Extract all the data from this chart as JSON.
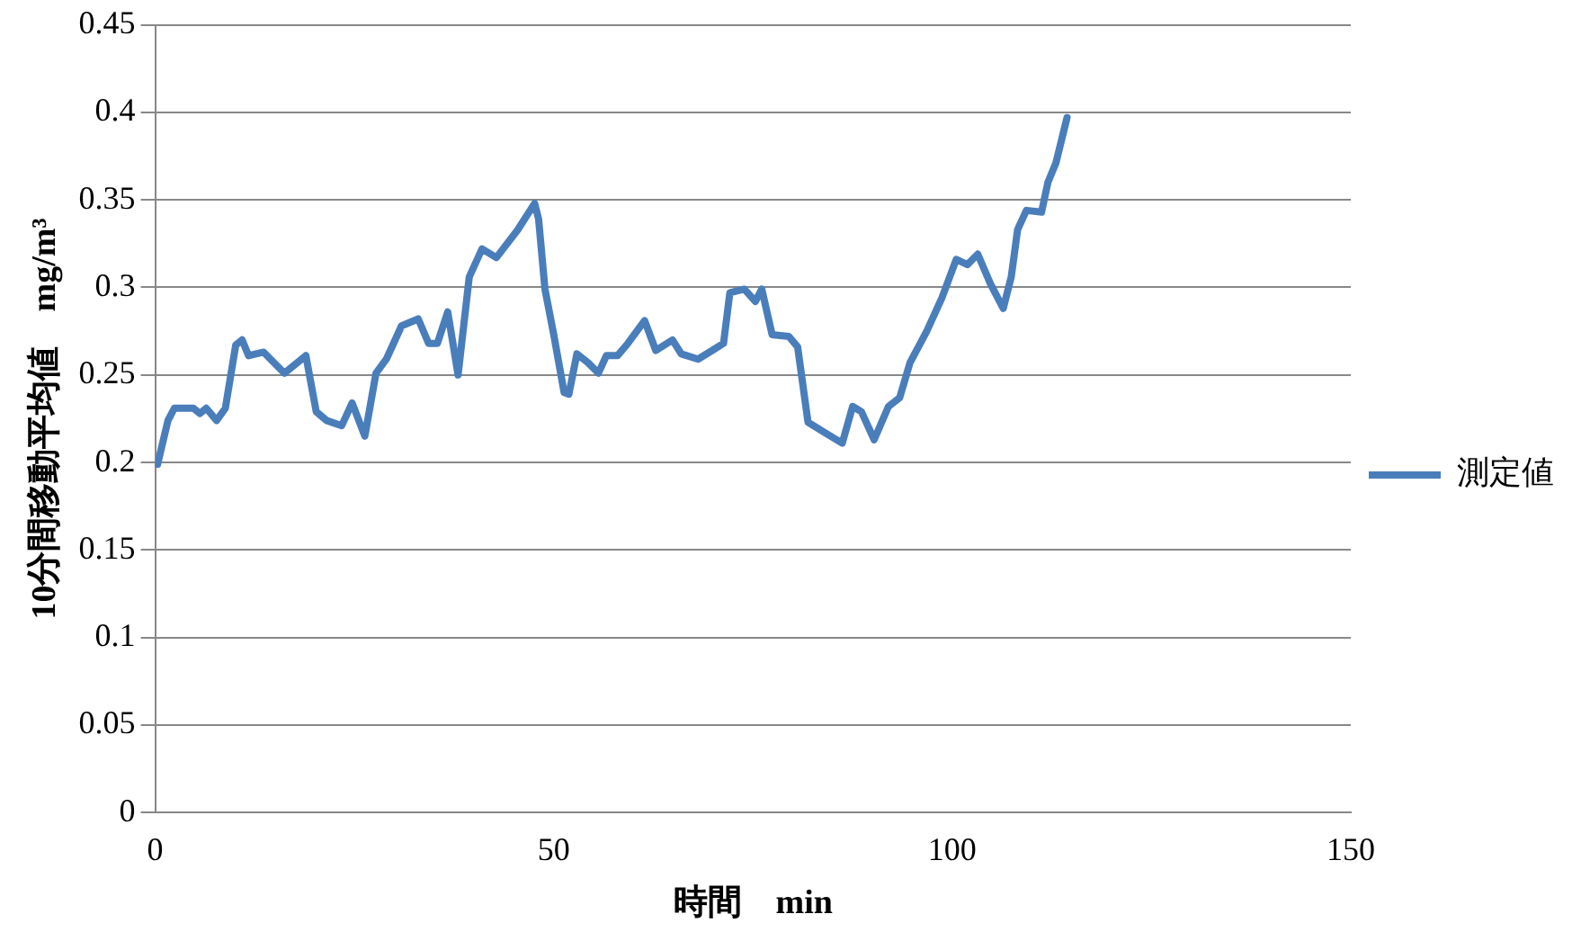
{
  "chart_data": {
    "type": "line",
    "xlabel": "時間　min",
    "ylabel": "10分間移動平均値　mg/m³",
    "xlim": [
      0,
      150
    ],
    "xticks": [
      0,
      50,
      100,
      150
    ],
    "ylim": [
      0,
      0.45
    ],
    "yticks": [
      0,
      0.05,
      0.1,
      0.15,
      0.2,
      0.25,
      0.3,
      0.35,
      0.4,
      0.45
    ],
    "grid": "y",
    "legend": "right",
    "marker": "none",
    "line_style": "solid",
    "series": [
      {
        "name": "測定値",
        "color": "#4a7ebb",
        "x": [
          0.3,
          1.6,
          2.4,
          4.8,
          5.6,
          6.4,
          7.7,
          8.8,
          10.1,
          10.9,
          11.7,
          13.6,
          16.2,
          18.9,
          20.2,
          21.5,
          23.4,
          24.7,
          26.3,
          27.7,
          29.0,
          30.9,
          33.0,
          34.3,
          35.4,
          36.7,
          38.0,
          39.4,
          41.0,
          42.8,
          45.5,
          47.6,
          48.1,
          48.9,
          50.0,
          51.3,
          51.9,
          52.9,
          54.3,
          55.6,
          56.6,
          58.0,
          59.3,
          61.4,
          62.8,
          64.9,
          66.0,
          68.1,
          69.9,
          71.3,
          72.1,
          73.9,
          75.3,
          76.1,
          77.4,
          79.5,
          80.6,
          81.9,
          84.0,
          86.2,
          87.5,
          88.6,
          90.2,
          92.0,
          93.4,
          94.7,
          96.8,
          98.7,
          100.5,
          101.9,
          103.2,
          104.8,
          106.4,
          107.4,
          108.2,
          109.3,
          111.2,
          112.0,
          113.0,
          114.4
        ],
        "values": [
          0.199,
          0.224,
          0.231,
          0.231,
          0.228,
          0.231,
          0.224,
          0.231,
          0.267,
          0.27,
          0.261,
          0.263,
          0.251,
          0.261,
          0.229,
          0.224,
          0.221,
          0.234,
          0.215,
          0.251,
          0.259,
          0.278,
          0.282,
          0.268,
          0.268,
          0.286,
          0.25,
          0.306,
          0.322,
          0.317,
          0.333,
          0.348,
          0.339,
          0.299,
          0.273,
          0.24,
          0.239,
          0.262,
          0.257,
          0.251,
          0.261,
          0.261,
          0.268,
          0.281,
          0.264,
          0.27,
          0.262,
          0.259,
          0.264,
          0.268,
          0.297,
          0.299,
          0.292,
          0.299,
          0.273,
          0.272,
          0.266,
          0.223,
          0.217,
          0.211,
          0.232,
          0.229,
          0.213,
          0.232,
          0.237,
          0.257,
          0.275,
          0.294,
          0.316,
          0.313,
          0.319,
          0.302,
          0.288,
          0.306,
          0.333,
          0.344,
          0.343,
          0.36,
          0.371,
          0.397
        ]
      }
    ]
  }
}
